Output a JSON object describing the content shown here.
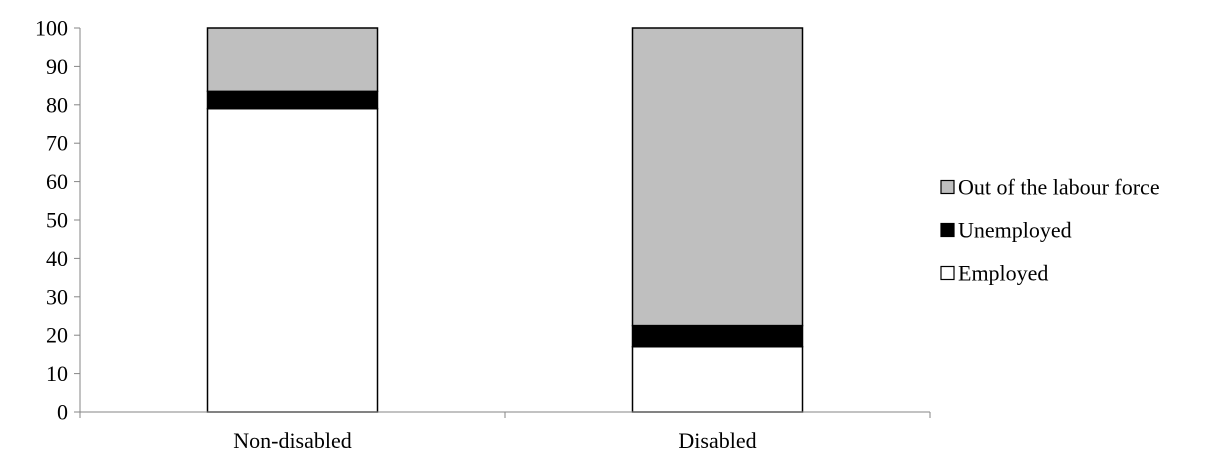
{
  "chart_data": {
    "type": "bar",
    "stacked": true,
    "title": "",
    "xlabel": "",
    "ylabel": "",
    "ylim": [
      0,
      100
    ],
    "yticks": [
      0,
      10,
      20,
      30,
      40,
      50,
      60,
      70,
      80,
      90,
      100
    ],
    "grid": false,
    "legend_position": "right",
    "categories": [
      "Non-disabled",
      "Disabled"
    ],
    "series": [
      {
        "name": "Employed",
        "values": [
          79,
          17
        ],
        "color": "#ffffff"
      },
      {
        "name": "Unemployed",
        "values": [
          4.5,
          5.5
        ],
        "color": "#000000"
      },
      {
        "name": "Out of the labour force",
        "values": [
          16.5,
          77.5
        ],
        "color": "#bfbfbf"
      }
    ],
    "legend_order": [
      "Out of the labour force",
      "Unemployed",
      "Employed"
    ]
  }
}
